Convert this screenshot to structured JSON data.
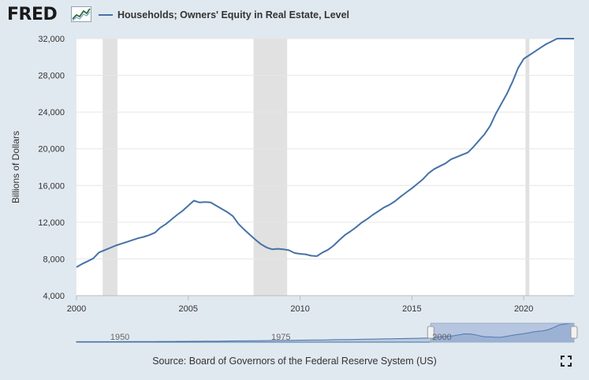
{
  "header": {
    "logo_text": "FRED",
    "legend_label": "Households; Owners' Equity in Real Estate, Level"
  },
  "colors": {
    "series": "#4572a7",
    "recession": "#e1e1e1",
    "background": "#e1e9f0",
    "plot": "#ffffff"
  },
  "chart_data": {
    "type": "line",
    "title": "",
    "xlabel": "",
    "ylabel": "Billions of Dollars",
    "xlim": [
      2000,
      2022.25
    ],
    "ylim": [
      4000,
      32000
    ],
    "x_ticks": [
      2000,
      2005,
      2010,
      2015,
      2020
    ],
    "x_tick_labels": [
      "2000",
      "2005",
      "2010",
      "2015",
      "2020"
    ],
    "y_ticks": [
      4000,
      8000,
      12000,
      16000,
      20000,
      24000,
      28000,
      32000
    ],
    "y_tick_labels": [
      "4,000",
      "8,000",
      "12,000",
      "16,000",
      "20,000",
      "24,000",
      "28,000",
      "32,000"
    ],
    "grid": "horizontal",
    "legend": "top-left",
    "recessions": [
      [
        2001.17,
        2001.83
      ],
      [
        2007.92,
        2009.42
      ],
      [
        2020.08,
        2020.25
      ]
    ],
    "series": [
      {
        "name": "Households; Owners' Equity in Real Estate, Level",
        "x": [
          2000,
          2000.25,
          2000.5,
          2000.75,
          2001,
          2001.25,
          2001.5,
          2001.75,
          2002,
          2002.25,
          2002.5,
          2002.75,
          2003,
          2003.25,
          2003.5,
          2003.75,
          2004,
          2004.25,
          2004.5,
          2004.75,
          2005,
          2005.25,
          2005.5,
          2005.75,
          2006,
          2006.25,
          2006.5,
          2006.75,
          2007,
          2007.25,
          2007.5,
          2007.75,
          2008,
          2008.25,
          2008.5,
          2008.75,
          2009,
          2009.25,
          2009.5,
          2009.75,
          2010,
          2010.25,
          2010.5,
          2010.75,
          2011,
          2011.25,
          2011.5,
          2011.75,
          2012,
          2012.25,
          2012.5,
          2012.75,
          2013,
          2013.25,
          2013.5,
          2013.75,
          2014,
          2014.25,
          2014.5,
          2014.75,
          2015,
          2015.25,
          2015.5,
          2015.75,
          2016,
          2016.25,
          2016.5,
          2016.75,
          2017,
          2017.25,
          2017.5,
          2017.75,
          2018,
          2018.25,
          2018.5,
          2018.75,
          2019,
          2019.25,
          2019.5,
          2019.75,
          2020,
          2020.25,
          2020.5,
          2020.75,
          2021,
          2021.25,
          2021.5,
          2021.75,
          2022,
          2022.25
        ],
        "values": [
          7100,
          7450,
          7750,
          8050,
          8700,
          8950,
          9200,
          9450,
          9650,
          9850,
          10050,
          10250,
          10400,
          10600,
          10850,
          11400,
          11800,
          12300,
          12800,
          13250,
          13800,
          14350,
          14150,
          14200,
          14150,
          13800,
          13450,
          13100,
          12650,
          11800,
          11200,
          10650,
          10100,
          9600,
          9250,
          9050,
          9100,
          9050,
          8950,
          8650,
          8550,
          8500,
          8350,
          8300,
          8700,
          9000,
          9450,
          10050,
          10600,
          11000,
          11450,
          11950,
          12350,
          12800,
          13200,
          13600,
          13900,
          14300,
          14800,
          15250,
          15700,
          16200,
          16700,
          17350,
          17800,
          18100,
          18400,
          18850,
          19100,
          19350,
          19600,
          20200,
          20900,
          21600,
          22500,
          23800,
          24900,
          26000,
          27300,
          28800,
          29800,
          30200,
          30600,
          31000,
          31400,
          31700,
          32000,
          32200,
          32400,
          32600
        ]
      }
    ]
  },
  "navigator": {
    "tick_labels": [
      "1950",
      "1975",
      "2000"
    ]
  },
  "footer": {
    "source": "Source: Board of Governors of the Federal Reserve System (US)"
  },
  "icons": {
    "logo_chart": "trend-chart-icon",
    "fullscreen": "fullscreen-icon"
  }
}
